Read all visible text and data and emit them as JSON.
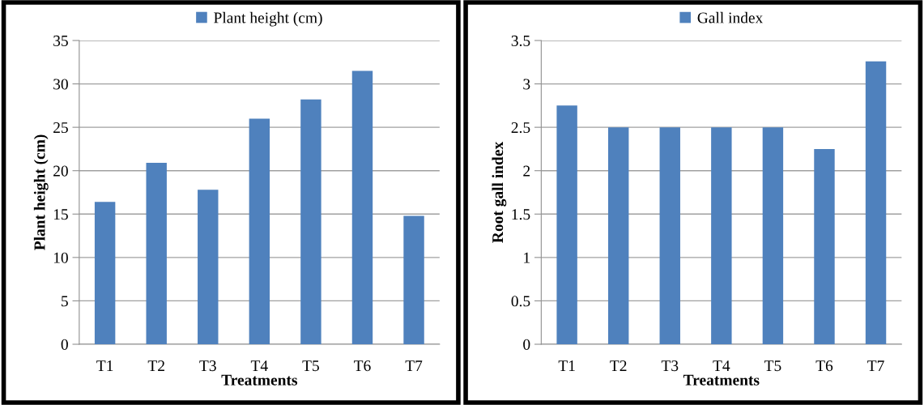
{
  "chart_data": [
    {
      "type": "bar",
      "categories": [
        "T1",
        "T2",
        "T3",
        "T4",
        "T5",
        "T6",
        "T7"
      ],
      "series": [
        {
          "name": "Plant height (cm)",
          "color": "#4f81bd",
          "values": [
            16.4,
            20.9,
            17.8,
            26.0,
            28.2,
            31.5,
            14.8
          ]
        }
      ],
      "xlabel": "Treatments",
      "ylabel": "Plant height (cm)",
      "ylim": [
        0,
        35
      ],
      "yticks": [
        0,
        5,
        10,
        15,
        20,
        25,
        30,
        35
      ],
      "grid": "y",
      "legend": "top"
    },
    {
      "type": "bar",
      "categories": [
        "T1",
        "T2",
        "T3",
        "T4",
        "T5",
        "T6",
        "T7"
      ],
      "series": [
        {
          "name": "Gall index",
          "color": "#4f81bd",
          "values": [
            2.75,
            2.5,
            2.5,
            2.5,
            2.5,
            2.25,
            3.26
          ]
        }
      ],
      "xlabel": "Treatments",
      "ylabel": "Root gall index",
      "ylim": [
        0,
        3.5
      ],
      "yticks": [
        0,
        0.5,
        1,
        1.5,
        2,
        2.5,
        3,
        3.5
      ],
      "grid": "y",
      "legend": "top"
    }
  ]
}
